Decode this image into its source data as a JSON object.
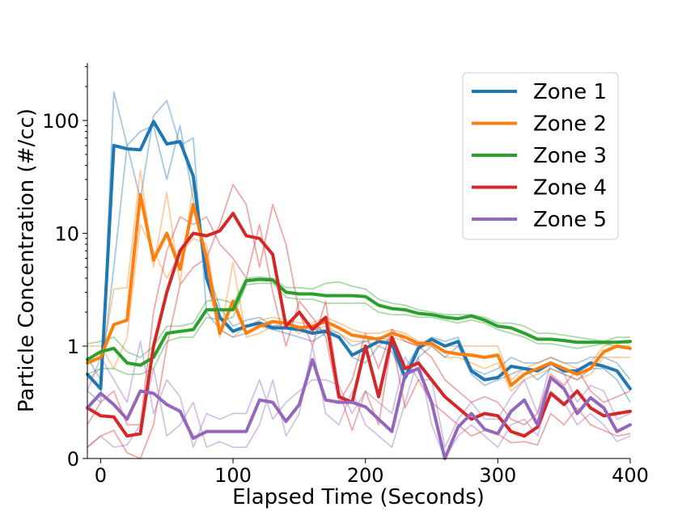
{
  "chart_data": {
    "type": "line",
    "xlabel": "Elapsed Time (Seconds)",
    "ylabel": "Particle Concentration (#/cc)",
    "xlim": [
      -10,
      400
    ],
    "yscale": "symlog",
    "y_ticks": [
      0,
      1,
      10,
      100
    ],
    "y_tick_labels": [
      "0",
      "1",
      "10",
      "100"
    ],
    "x_ticks": [
      0,
      100,
      200,
      300,
      400
    ],
    "x_tick_labels": [
      "0",
      "100",
      "200",
      "300",
      "400"
    ],
    "legend_position": "top-right",
    "grid": false,
    "x": [
      -10,
      0,
      10,
      20,
      30,
      40,
      50,
      60,
      70,
      80,
      90,
      100,
      110,
      120,
      130,
      140,
      150,
      160,
      170,
      180,
      190,
      200,
      210,
      220,
      230,
      240,
      250,
      260,
      270,
      280,
      290,
      300,
      310,
      320,
      330,
      340,
      350,
      360,
      370,
      380,
      390,
      400
    ],
    "series": [
      {
        "name": "Zone 1",
        "color": "#1f77b4",
        "values": [
          0.75,
          0.62,
          60,
          56,
          55,
          98,
          62,
          65,
          32,
          4.0,
          1.8,
          1.35,
          1.5,
          1.6,
          1.45,
          1.45,
          1.4,
          1.3,
          1.35,
          1.2,
          0.92,
          0.98,
          1.1,
          1.05,
          0.72,
          0.98,
          1.15,
          1.0,
          1.1,
          0.78,
          0.7,
          0.72,
          0.82,
          0.8,
          0.78,
          0.85,
          0.78,
          0.78,
          0.85,
          0.82,
          0.78,
          0.62
        ],
        "replicates": [
          [
            0.6,
            0.5,
            180,
            60,
            20,
            110,
            150,
            60,
            70,
            2.0,
            1.4,
            1.2,
            1.3,
            1.5,
            1.4,
            1.3,
            1.2,
            1.1,
            1.3,
            1.2,
            0.9,
            0.85,
            1.0,
            0.95,
            0.7,
            0.9,
            1.0,
            0.9,
            1.0,
            0.75,
            0.65,
            0.7,
            0.75,
            0.8,
            0.7,
            0.8,
            0.75,
            0.7,
            0.8,
            0.8,
            0.7,
            0.5
          ],
          [
            0.9,
            0.7,
            5,
            60,
            80,
            90,
            30,
            90,
            20,
            5.0,
            2.2,
            1.5,
            1.7,
            1.8,
            1.5,
            1.6,
            1.5,
            1.4,
            1.4,
            1.3,
            1.0,
            1.1,
            1.2,
            1.1,
            0.8,
            1.0,
            1.2,
            1.1,
            1.2,
            0.8,
            0.75,
            0.8,
            0.9,
            0.85,
            0.85,
            0.9,
            0.85,
            0.85,
            0.9,
            0.9,
            0.85,
            0.7
          ]
        ]
      },
      {
        "name": "Zone 2",
        "color": "#ff7f0e",
        "values": [
          0.85,
          0.9,
          1.55,
          1.7,
          22,
          5.8,
          10,
          4.8,
          18,
          6.0,
          1.3,
          2.5,
          1.3,
          1.5,
          1.65,
          1.6,
          1.45,
          1.5,
          1.65,
          1.45,
          1.25,
          1.2,
          1.15,
          1.3,
          1.2,
          1.05,
          1.05,
          0.95,
          0.93,
          0.92,
          0.9,
          0.92,
          0.65,
          0.75,
          0.8,
          0.85,
          0.8,
          0.75,
          0.8,
          0.95,
          1.0,
          0.98
        ],
        "replicates": [
          [
            0.7,
            0.8,
            3.2,
            3.3,
            36,
            5.0,
            23,
            3.5,
            28,
            4.0,
            1.2,
            5.5,
            1.2,
            1.3,
            1.5,
            1.5,
            1.3,
            1.4,
            1.5,
            1.3,
            1.1,
            1.1,
            1.0,
            1.2,
            1.1,
            1.0,
            1.0,
            0.9,
            0.9,
            0.85,
            0.8,
            0.85,
            0.6,
            0.7,
            0.75,
            0.8,
            0.75,
            0.7,
            0.75,
            0.9,
            0.9,
            0.9
          ],
          [
            1.0,
            1.0,
            0.8,
            1.2,
            12,
            7.0,
            4.0,
            6.5,
            9,
            8.0,
            1.4,
            1.2,
            1.5,
            1.7,
            1.8,
            1.7,
            1.6,
            1.6,
            1.8,
            1.6,
            1.4,
            1.3,
            1.3,
            1.4,
            1.3,
            1.1,
            1.1,
            1.0,
            1.0,
            1.0,
            1.0,
            1.0,
            0.7,
            0.8,
            0.85,
            0.9,
            0.85,
            0.8,
            0.85,
            1.0,
            1.1,
            1.05
          ]
        ]
      },
      {
        "name": "Zone 3",
        "color": "#2ca02c",
        "values": [
          0.88,
          0.95,
          0.98,
          0.85,
          0.83,
          0.9,
          1.3,
          1.35,
          1.4,
          2.1,
          2.1,
          2.1,
          3.8,
          3.9,
          3.85,
          3.0,
          2.9,
          2.9,
          2.8,
          2.8,
          2.8,
          2.75,
          2.3,
          2.15,
          2.1,
          1.95,
          1.9,
          1.8,
          1.75,
          1.85,
          1.7,
          1.5,
          1.45,
          1.3,
          1.15,
          1.15,
          1.12,
          1.08,
          1.08,
          1.08,
          1.08,
          1.1
        ],
        "replicates": [
          [
            1.05,
            1.1,
            1.2,
            0.95,
            0.9,
            1.0,
            1.5,
            1.5,
            1.6,
            2.5,
            2.6,
            2.4,
            4.0,
            4.1,
            4.0,
            3.3,
            3.3,
            3.2,
            3.6,
            3.7,
            3.4,
            3.2,
            2.6,
            2.4,
            2.3,
            2.1,
            2.0,
            1.9,
            1.9,
            1.9,
            1.8,
            1.6,
            1.6,
            1.5,
            1.3,
            1.3,
            1.25,
            1.2,
            1.15,
            1.1,
            1.2,
            1.2
          ],
          [
            0.75,
            0.8,
            0.8,
            0.75,
            0.75,
            0.8,
            1.1,
            1.2,
            1.2,
            1.8,
            1.7,
            1.8,
            3.5,
            3.6,
            3.6,
            2.7,
            2.6,
            2.6,
            2.4,
            2.4,
            2.4,
            2.4,
            2.0,
            1.9,
            1.9,
            1.8,
            1.8,
            1.7,
            1.6,
            1.7,
            1.6,
            1.4,
            1.3,
            1.2,
            1.05,
            1.05,
            1.0,
            0.98,
            1.0,
            1.05,
            1.0,
            1.0
          ]
        ]
      },
      {
        "name": "Zone 4",
        "color": "#d62728",
        "values": [
          0.45,
          0.38,
          0.37,
          0.2,
          0.22,
          1.0,
          3.0,
          7.0,
          10,
          9.5,
          10.5,
          15,
          9.5,
          9.0,
          6.5,
          1.5,
          2.0,
          1.4,
          1.8,
          0.55,
          0.5,
          1.0,
          0.55,
          1.2,
          0.8,
          0.85,
          0.7,
          0.55,
          0.45,
          0.35,
          0.4,
          0.38,
          0.24,
          0.2,
          0.28,
          0.58,
          0.48,
          0.6,
          0.45,
          0.38,
          0.4,
          0.42
        ],
        "replicates": [
          [
            0.1,
            0.2,
            0.25,
            0.05,
            0.0,
            0.3,
            1.0,
            3.5,
            5.0,
            6.0,
            12,
            27,
            18,
            5.0,
            18,
            8.0,
            2.0,
            1.0,
            2.5,
            0.6,
            0.25,
            0.6,
            0.3,
            1.1,
            0.45,
            0.7,
            0.5,
            0.4,
            0.3,
            0.2,
            0.25,
            0.22,
            0.14,
            0.15,
            0.12,
            0.4,
            0.3,
            0.45,
            0.3,
            0.25,
            0.2,
            0.22
          ],
          [
            0.3,
            0.5,
            0.6,
            0.3,
            0.3,
            2.0,
            7.0,
            14,
            12,
            14,
            8.0,
            6.0,
            4.0,
            12,
            3.0,
            1.0,
            2.5,
            1.8,
            1.2,
            0.5,
            0.7,
            1.3,
            0.8,
            1.4,
            1.1,
            1.0,
            0.9,
            0.7,
            0.6,
            0.5,
            0.55,
            0.5,
            0.35,
            0.3,
            0.4,
            0.75,
            0.65,
            0.8,
            0.6,
            0.5,
            0.55,
            0.6
          ]
        ]
      },
      {
        "name": "Zone 5",
        "color": "#9467bd",
        "values": [
          0.45,
          0.58,
          0.48,
          0.35,
          0.6,
          0.58,
          0.48,
          0.42,
          0.18,
          0.24,
          0.24,
          0.24,
          0.24,
          0.52,
          0.5,
          0.33,
          0.48,
          0.88,
          0.52,
          0.5,
          0.5,
          0.46,
          0.35,
          0.24,
          0.75,
          0.8,
          0.5,
          0.0,
          0.28,
          0.4,
          0.26,
          0.22,
          0.42,
          0.52,
          0.3,
          0.72,
          0.62,
          0.4,
          0.54,
          0.45,
          0.24,
          0.3
        ],
        "replicates": [
          [
            0.1,
            0.2,
            0.1,
            0.12,
            0.3,
            0.8,
            0.2,
            0.3,
            0.5,
            0.1,
            0.15,
            0.1,
            0.1,
            0.3,
            0.7,
            0.2,
            0.4,
            1.0,
            0.4,
            0.3,
            0.6,
            0.3,
            0.2,
            0.1,
            0.5,
            0.9,
            0.3,
            0.0,
            0.2,
            0.3,
            0.2,
            0.1,
            0.3,
            0.35,
            0.2,
            0.6,
            0.5,
            0.3,
            0.4,
            0.3,
            0.15,
            0.2
          ],
          [
            0.6,
            0.9,
            0.7,
            0.5,
            1.1,
            0.4,
            0.7,
            0.55,
            0.1,
            0.4,
            0.35,
            0.4,
            0.4,
            0.7,
            0.35,
            0.5,
            0.6,
            0.7,
            0.7,
            0.65,
            0.4,
            0.6,
            0.5,
            0.4,
            0.9,
            0.7,
            0.7,
            0.1,
            0.35,
            0.5,
            0.35,
            0.35,
            0.55,
            0.7,
            0.4,
            0.85,
            0.75,
            0.5,
            0.65,
            0.6,
            0.35,
            0.4
          ]
        ]
      }
    ]
  }
}
